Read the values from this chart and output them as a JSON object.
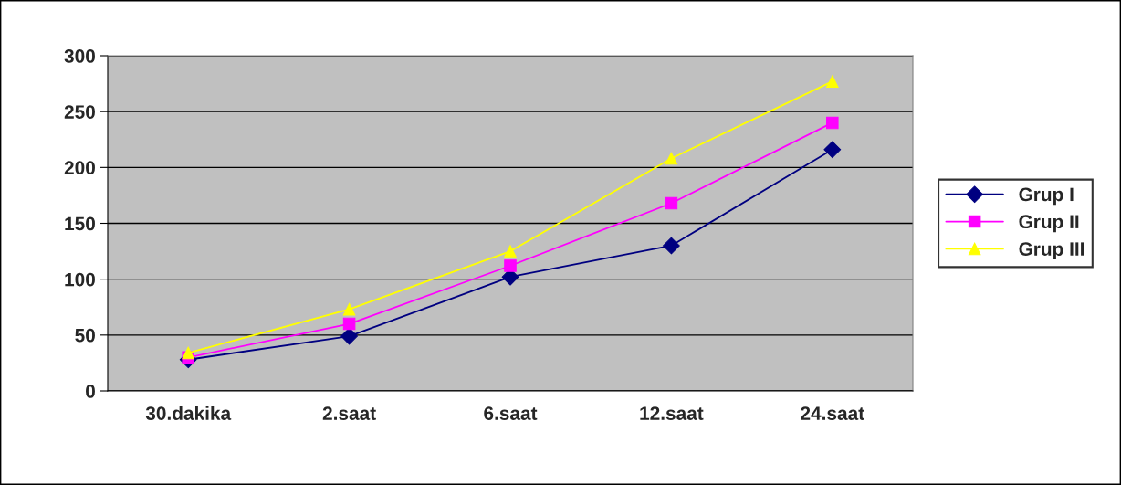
{
  "chart_data": {
    "type": "line",
    "categories": [
      "30.dakika",
      "2.saat",
      "6.saat",
      "12.saat",
      "24.saat"
    ],
    "series": [
      {
        "name": "Grup I",
        "color": "#000080",
        "marker": "diamond",
        "values": [
          28,
          49,
          102,
          130,
          216
        ]
      },
      {
        "name": "Grup II",
        "color": "#ff00ff",
        "marker": "square",
        "values": [
          30,
          60,
          112,
          168,
          240
        ]
      },
      {
        "name": "Grup III",
        "color": "#ffff00",
        "marker": "triangle",
        "values": [
          34,
          73,
          125,
          208,
          277
        ]
      }
    ],
    "ylim": [
      0,
      300
    ],
    "yticks": [
      0,
      50,
      100,
      150,
      200,
      250,
      300
    ],
    "grid": "y",
    "legend": "right",
    "line_style": "solid"
  }
}
